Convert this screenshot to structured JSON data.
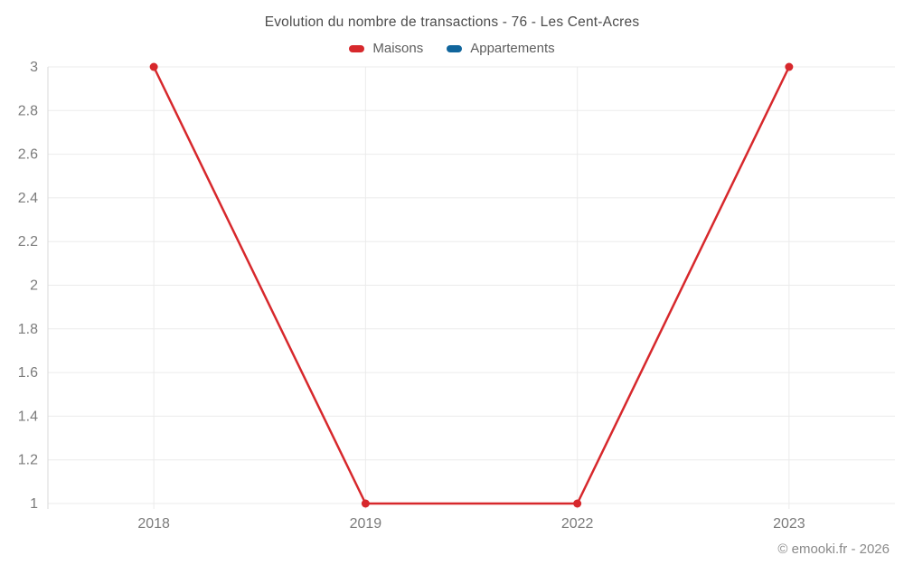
{
  "title": "Evolution du nombre de transactions - 76 - Les Cent-Acres",
  "footer": "© emooki.fr - 2026",
  "colors": {
    "maisons": "#d7282c",
    "appartements": "#10659c",
    "gridline": "#ebebeb",
    "axis_border": "#d9d9d9",
    "tick_text": "#7b7b7b"
  },
  "chart_data": {
    "type": "line",
    "title": "Evolution du nombre de transactions - 76 - Les Cent-Acres",
    "categories": [
      "2018",
      "2019",
      "2022",
      "2023"
    ],
    "series": [
      {
        "name": "Maisons",
        "color": "#d7282c",
        "values": [
          3,
          1,
          1,
          3
        ]
      },
      {
        "name": "Appartements",
        "color": "#10659c",
        "values": []
      }
    ],
    "xlabel": "",
    "ylabel": "",
    "ylim": [
      1,
      3
    ],
    "yticks": [
      "3",
      "2.8",
      "2.6",
      "2.4",
      "2.2",
      "2",
      "1.8",
      "1.6",
      "1.4",
      "1.2",
      "1"
    ],
    "grid": true,
    "legend_position": "top"
  }
}
